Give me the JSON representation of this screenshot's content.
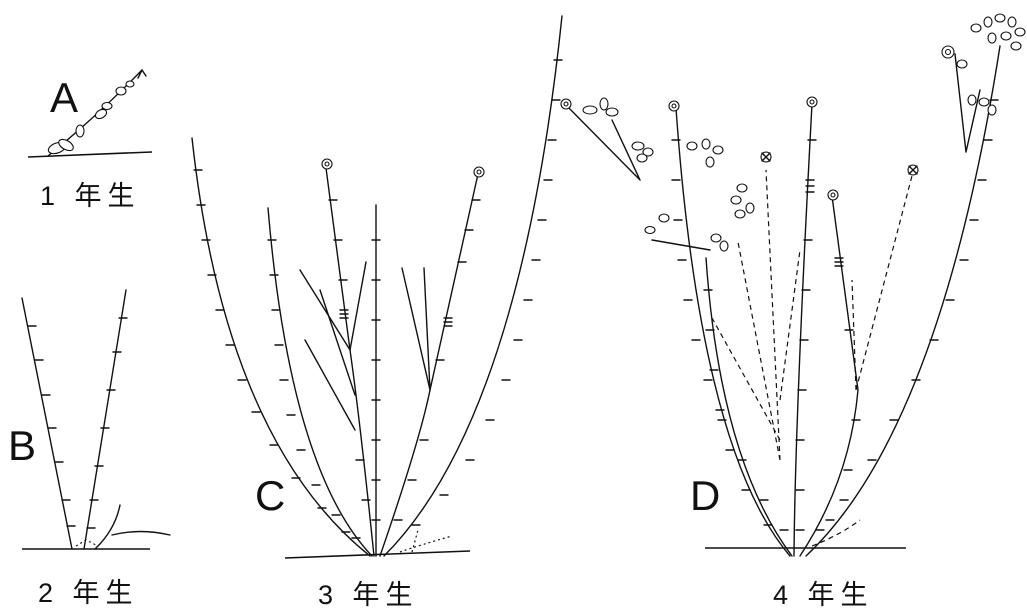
{
  "panels": [
    {
      "letter": "A",
      "age": "1 年生"
    },
    {
      "letter": "B",
      "age": "2 年生"
    },
    {
      "letter": "C",
      "age": "3 年生"
    },
    {
      "letter": "D",
      "age": "4 年生"
    }
  ]
}
